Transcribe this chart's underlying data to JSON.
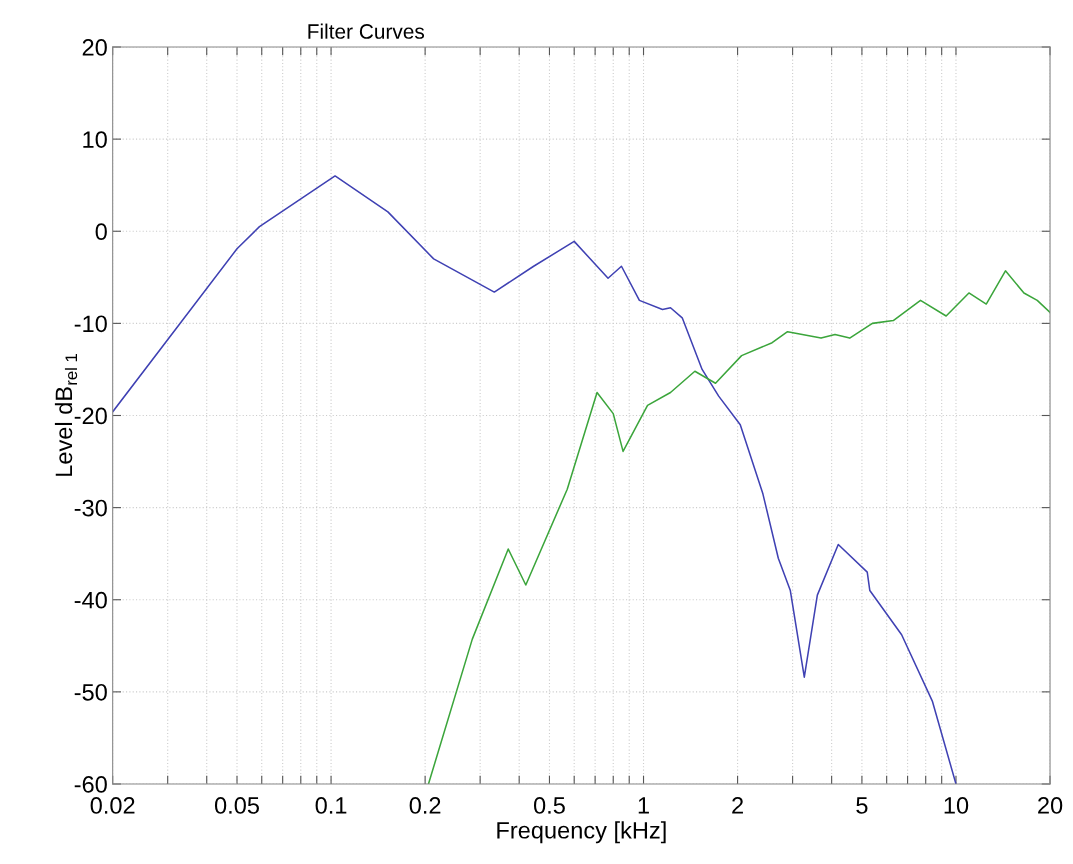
{
  "chart_data": {
    "type": "line",
    "title": "Filter Curves",
    "xlabel": "Frequency [kHz]",
    "ylabel": "Level dB$_{rel 1}$",
    "log": "x",
    "grid": true,
    "line_style": "solid",
    "marker": "none",
    "xlim": [
      0.02,
      20
    ],
    "ylim": [
      -60,
      20
    ],
    "xticks": [
      0.02,
      {
        "value": 0.03,
        "label": null
      },
      {
        "value": 0.04,
        "label": null
      },
      0.05,
      {
        "value": 0.06,
        "label": null
      },
      {
        "value": 0.07,
        "label": null
      },
      {
        "value": 0.08,
        "label": null
      },
      {
        "value": 0.09,
        "label": null
      },
      0.1,
      0.2,
      {
        "value": 0.3,
        "label": null
      },
      {
        "value": 0.4,
        "label": null
      },
      0.5,
      {
        "value": 0.6,
        "label": null
      },
      {
        "value": 0.7,
        "label": null
      },
      {
        "value": 0.8,
        "label": null
      },
      {
        "value": 0.9,
        "label": null
      },
      1,
      2,
      {
        "value": 3,
        "label": null
      },
      {
        "value": 4,
        "label": null
      },
      5,
      {
        "value": 6,
        "label": null
      },
      {
        "value": 7,
        "label": null
      },
      {
        "value": 8,
        "label": null
      },
      {
        "value": 9,
        "label": null
      },
      10,
      20
    ],
    "yticks": [
      -60,
      -50,
      -40,
      -30,
      -20,
      -10,
      0,
      10,
      20
    ],
    "series": [
      {
        "color": "#3f41b3",
        "x": [
          0.02,
          0.05,
          0.059,
          0.103,
          0.152,
          0.213,
          0.333,
          0.445,
          0.6,
          0.77,
          0.85,
          0.97,
          1.15,
          1.22,
          1.33,
          1.54,
          1.74,
          2.04,
          2.41,
          2.7,
          2.95,
          3.27,
          3.6,
          4.2,
          5.2,
          5.3,
          6.7,
          8.4,
          10.0
        ],
        "values": [
          -19.6,
          -1.9,
          0.5,
          6.0,
          2.1,
          -3.0,
          -6.6,
          -3.8,
          -1.1,
          -5.1,
          -3.8,
          -7.5,
          -8.5,
          -8.3,
          -9.4,
          -15,
          -17.9,
          -21,
          -28.5,
          -35.5,
          -39,
          -48.4,
          -39.5,
          -34,
          -37,
          -39,
          -43.8,
          -51,
          -60
        ]
      },
      {
        "color": "#3ba53b",
        "x": [
          0.205,
          0.283,
          0.369,
          0.42,
          0.57,
          0.71,
          0.8,
          0.86,
          1.03,
          1.22,
          1.46,
          1.7,
          2.06,
          2.58,
          2.89,
          3.7,
          4.1,
          4.57,
          5.4,
          6.3,
          7.7,
          9.3,
          11.0,
          12.5,
          14.4,
          16.5,
          18.2,
          20
        ],
        "values": [
          -60,
          -44.3,
          -34.5,
          -38.4,
          -28,
          -17.5,
          -19.8,
          -23.9,
          -18.9,
          -17.5,
          -15.2,
          -16.5,
          -13.5,
          -12.1,
          -10.9,
          -11.6,
          -11.2,
          -11.6,
          -10,
          -9.7,
          -7.5,
          -9.2,
          -6.7,
          -7.9,
          -4.3,
          -6.7,
          -7.5,
          -8.8
        ]
      }
    ]
  }
}
